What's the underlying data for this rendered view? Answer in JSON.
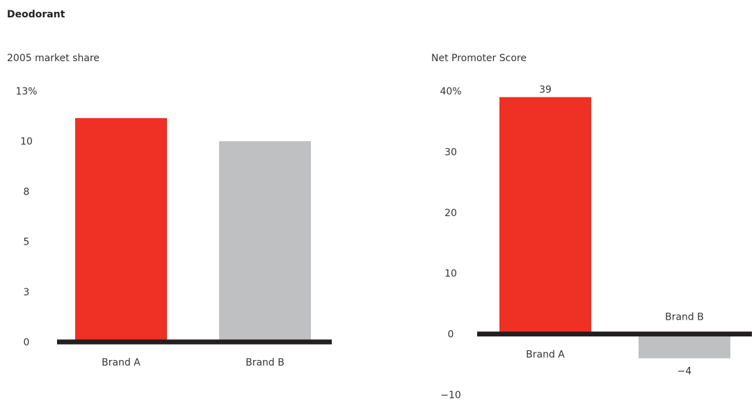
{
  "page": {
    "title": "Deodorant"
  },
  "colors": {
    "brand_a": "#ee3124",
    "brand_b": "#bfc0c2",
    "baseline": "#231f20"
  },
  "chart_data": [
    {
      "type": "bar",
      "title": "2005 market share",
      "unit": "%",
      "categories": [
        "Brand A",
        "Brand B"
      ],
      "values": [
        11.6,
        10.4
      ],
      "ylim": [
        0,
        13
      ],
      "yticks": [
        {
          "value": 0,
          "label": "0"
        },
        {
          "value": 2.6,
          "label": "3"
        },
        {
          "value": 5.2,
          "label": "5"
        },
        {
          "value": 7.8,
          "label": "8"
        },
        {
          "value": 10.4,
          "label": "10"
        },
        {
          "value": 13,
          "label": "13%"
        }
      ],
      "grid": false,
      "legend": "none"
    },
    {
      "type": "bar",
      "title": "Net Promoter Score",
      "unit": "%",
      "categories": [
        "Brand A",
        "Brand B"
      ],
      "values": [
        39,
        -4
      ],
      "data_labels": [
        "39",
        "−4"
      ],
      "ylim": [
        -10,
        40
      ],
      "yticks": [
        {
          "value": -10,
          "label": "−10"
        },
        {
          "value": 0,
          "label": "0"
        },
        {
          "value": 10,
          "label": "10"
        },
        {
          "value": 20,
          "label": "20"
        },
        {
          "value": 30,
          "label": "30"
        },
        {
          "value": 40,
          "label": "40%"
        }
      ],
      "grid": false,
      "legend": "none"
    }
  ]
}
